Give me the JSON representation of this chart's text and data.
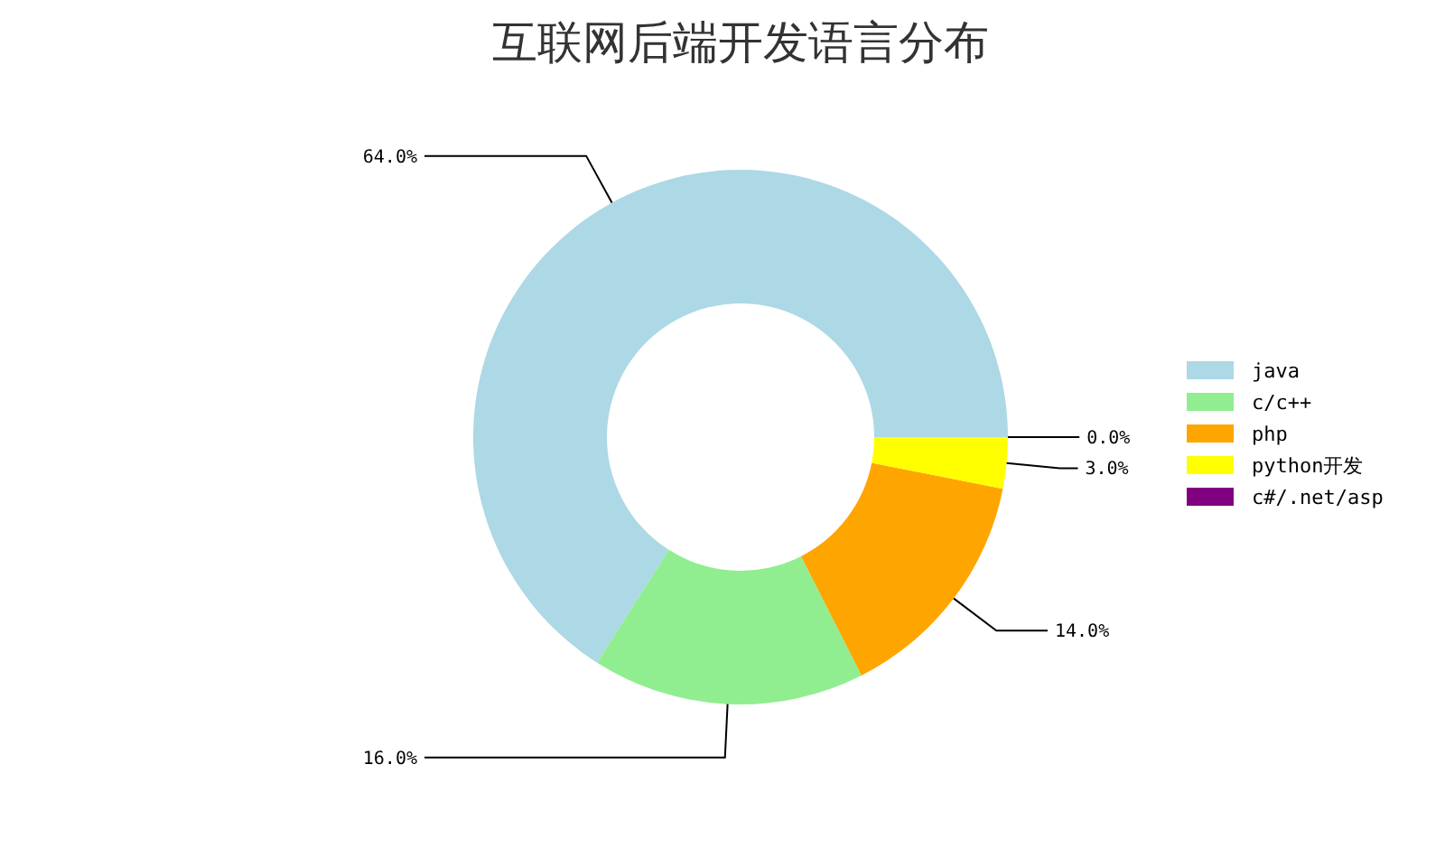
{
  "chart_data": {
    "type": "donut",
    "title": "互联网后端开发语言分布",
    "categories": [
      "java",
      "c/c++",
      "php",
      "python开发",
      "c#/.net/asp"
    ],
    "values": [
      64.0,
      16.0,
      14.0,
      3.0,
      0.0
    ],
    "value_labels": [
      "64.0%",
      "16.0%",
      "14.0%",
      "3.0%",
      "0.0%"
    ],
    "colors": [
      "#add8e6",
      "#90ee90",
      "#ffa500",
      "#ffff00",
      "#800080"
    ],
    "legend": "right"
  }
}
